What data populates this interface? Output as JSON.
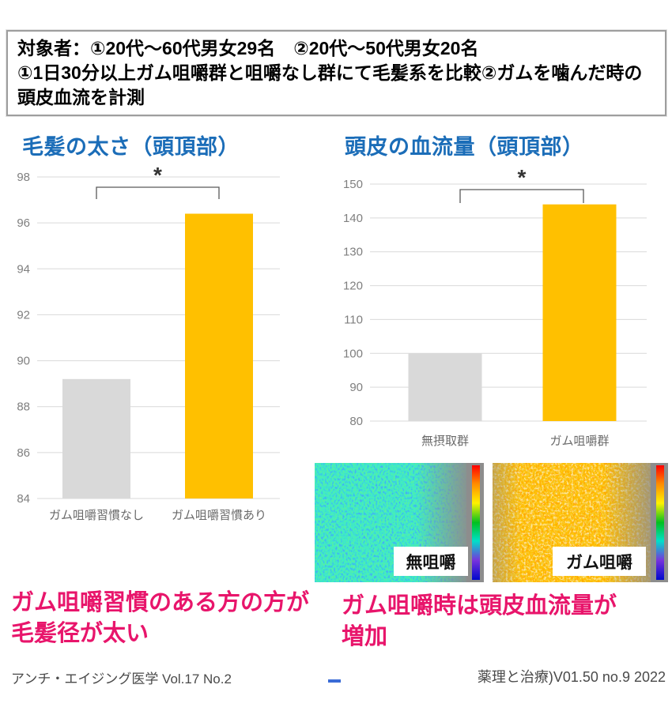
{
  "header_box": {
    "line1": "対象者：①20代～60代男女29名　②20代～50代男女20名",
    "line2": "①1日30分以上ガム咀嚼群と咀嚼なし群にて毛髪系を比較②ガムを噛んだ時の頭皮血流を計測"
  },
  "chart_data": [
    {
      "type": "bar",
      "title": "毛髪の太さ（頭頂部）",
      "categories": [
        "ガム咀嚼習慣なし",
        "ガム咀嚼習慣あり"
      ],
      "values": [
        89.2,
        96.4
      ],
      "bar_colors": [
        "#d9d9d9",
        "#ffc000"
      ],
      "ylim": [
        84,
        98
      ],
      "ytick_step": 2,
      "grid": true,
      "legend": "none",
      "significance": "*",
      "xlabel": "",
      "ylabel": ""
    },
    {
      "type": "bar",
      "title": "頭皮の血流量（頭頂部）",
      "categories": [
        "無摂取群",
        "ガム咀嚼群"
      ],
      "values": [
        100,
        144
      ],
      "bar_colors": [
        "#d9d9d9",
        "#ffc000"
      ],
      "ylim": [
        80,
        150
      ],
      "ytick_step": 10,
      "grid": true,
      "legend": "none",
      "significance": "*",
      "xlabel": "",
      "ylabel": ""
    }
  ],
  "heatmaps": [
    {
      "label": "無咀嚼",
      "dominant_colors": [
        "#23c98a",
        "#18b8c8",
        "#2a35c4"
      ]
    },
    {
      "label": "ガム咀嚼",
      "dominant_colors": [
        "#ff8a00",
        "#ff4b00",
        "#45c32e"
      ]
    }
  ],
  "conclusions": [
    {
      "line1": "ガム咀嚼習慣のある方の方が",
      "line2": "毛髪径が太い"
    },
    {
      "line1": "ガム咀嚼時は頭皮血流量が",
      "line2": "増加"
    }
  ],
  "citations": {
    "left": "アンチ・エイジング医学 Vol.17 No.2",
    "right": "薬理と治療)V01.50 no.9 2022"
  },
  "colors": {
    "title_blue": "#1b6db8",
    "conclusion_pink": "#e8156b",
    "bar_gray": "#d9d9d9",
    "bar_yellow": "#ffc000",
    "gridline": "#d9d9d9",
    "axis_text": "#7f7f7f"
  }
}
